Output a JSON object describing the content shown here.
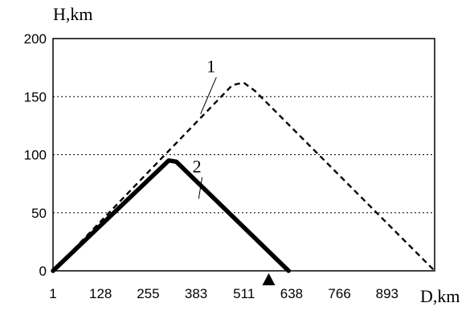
{
  "chart_data": {
    "type": "line",
    "xlabel": "D,km",
    "ylabel": "H,km",
    "xticks": [
      "1",
      "128",
      "255",
      "383",
      "511",
      "638",
      "766",
      "893"
    ],
    "yticks": [
      "0",
      "50",
      "100",
      "150",
      "200"
    ],
    "xlim": [
      1,
      1020
    ],
    "ylim": [
      0,
      200
    ],
    "grid": "horizontal dotted",
    "series": [
      {
        "name": "1",
        "style": "dashed",
        "color": "#000000",
        "points": [
          [
            1,
            0
          ],
          [
            300,
            100
          ],
          [
            480,
            160
          ],
          [
            510,
            162
          ],
          [
            540,
            155
          ],
          [
            1020,
            0
          ]
        ]
      },
      {
        "name": "2",
        "style": "solid-thick",
        "color": "#000000",
        "points": [
          [
            1,
            0
          ],
          [
            310,
            95
          ],
          [
            330,
            94
          ],
          [
            630,
            0
          ]
        ]
      }
    ],
    "annotations": [
      {
        "text": "1",
        "x": 450,
        "y": 168
      },
      {
        "text": "2",
        "x": 412,
        "y": 82
      }
    ],
    "marker": {
      "shape": "triangle",
      "x": 577,
      "y": 0
    }
  }
}
